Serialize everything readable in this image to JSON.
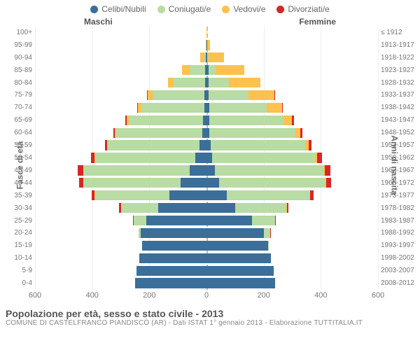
{
  "legend": [
    {
      "label": "Celibi/Nubili",
      "color": "#3b6e99"
    },
    {
      "label": "Coniugati/e",
      "color": "#b8dca3"
    },
    {
      "label": "Vedovi/e",
      "color": "#fdc24d"
    },
    {
      "label": "Divorziati/e",
      "color": "#d62728"
    }
  ],
  "columns": {
    "left": "Maschi",
    "right": "Femmine"
  },
  "axis": {
    "left_label": "Fasce di età",
    "right_label": "Anni di nascita"
  },
  "x": {
    "max": 600,
    "ticks": [
      600,
      400,
      200,
      0,
      200,
      400,
      600
    ]
  },
  "title": "Popolazione per età, sesso e stato civile - 2013",
  "subtitle": "COMUNE DI CASTELFRANCO PIANDISCÒ (AR) - Dati ISTAT 1° gennaio 2013 - Elaborazione TUTTITALIA.IT",
  "colors": {
    "celibi": "#3b6e99",
    "coniugati": "#b8dca3",
    "vedovi": "#fdc24d",
    "divorziati": "#d62728",
    "grid": "#eeeeee",
    "center": "#bbbbbb",
    "text": "#777777",
    "bg": "#ffffff"
  },
  "typography": {
    "tick_fontsize": 10,
    "legend_fontsize": 12,
    "title_fontsize": 14
  },
  "rows": [
    {
      "age": "100+",
      "year": "≤ 1912",
      "m": {
        "c": 0,
        "co": 0,
        "v": 0,
        "d": 0
      },
      "f": {
        "c": 0,
        "co": 0,
        "v": 2,
        "d": 0
      }
    },
    {
      "age": "95-99",
      "year": "1913-1917",
      "m": {
        "c": 0,
        "co": 0,
        "v": 3,
        "d": 0
      },
      "f": {
        "c": 2,
        "co": 0,
        "v": 10,
        "d": 0
      }
    },
    {
      "age": "90-94",
      "year": "1918-1922",
      "m": {
        "c": 2,
        "co": 5,
        "v": 15,
        "d": 0
      },
      "f": {
        "c": 3,
        "co": 3,
        "v": 55,
        "d": 0
      }
    },
    {
      "age": "85-89",
      "year": "1923-1927",
      "m": {
        "c": 5,
        "co": 55,
        "v": 25,
        "d": 0
      },
      "f": {
        "c": 8,
        "co": 25,
        "v": 100,
        "d": 0
      }
    },
    {
      "age": "80-84",
      "year": "1928-1932",
      "m": {
        "c": 5,
        "co": 110,
        "v": 20,
        "d": 0
      },
      "f": {
        "c": 8,
        "co": 70,
        "v": 110,
        "d": 0
      }
    },
    {
      "age": "75-79",
      "year": "1933-1937",
      "m": {
        "c": 8,
        "co": 180,
        "v": 18,
        "d": 2
      },
      "f": {
        "c": 8,
        "co": 140,
        "v": 90,
        "d": 2
      }
    },
    {
      "age": "70-74",
      "year": "1938-1942",
      "m": {
        "c": 8,
        "co": 220,
        "v": 12,
        "d": 3
      },
      "f": {
        "c": 10,
        "co": 200,
        "v": 55,
        "d": 3
      }
    },
    {
      "age": "65-69",
      "year": "1943-1947",
      "m": {
        "c": 12,
        "co": 260,
        "v": 8,
        "d": 5
      },
      "f": {
        "c": 10,
        "co": 260,
        "v": 30,
        "d": 5
      }
    },
    {
      "age": "60-64",
      "year": "1948-1952",
      "m": {
        "c": 15,
        "co": 300,
        "v": 5,
        "d": 6
      },
      "f": {
        "c": 10,
        "co": 300,
        "v": 18,
        "d": 8
      }
    },
    {
      "age": "55-59",
      "year": "1953-1957",
      "m": {
        "c": 25,
        "co": 320,
        "v": 3,
        "d": 8
      },
      "f": {
        "c": 15,
        "co": 330,
        "v": 12,
        "d": 10
      }
    },
    {
      "age": "50-54",
      "year": "1958-1962",
      "m": {
        "c": 40,
        "co": 350,
        "v": 2,
        "d": 12
      },
      "f": {
        "c": 20,
        "co": 360,
        "v": 8,
        "d": 15
      }
    },
    {
      "age": "45-49",
      "year": "1963-1967",
      "m": {
        "c": 60,
        "co": 370,
        "v": 2,
        "d": 18
      },
      "f": {
        "c": 30,
        "co": 380,
        "v": 5,
        "d": 18
      }
    },
    {
      "age": "40-44",
      "year": "1968-1972",
      "m": {
        "c": 90,
        "co": 340,
        "v": 1,
        "d": 15
      },
      "f": {
        "c": 45,
        "co": 370,
        "v": 4,
        "d": 16
      }
    },
    {
      "age": "35-39",
      "year": "1973-1977",
      "m": {
        "c": 130,
        "co": 260,
        "v": 1,
        "d": 10
      },
      "f": {
        "c": 70,
        "co": 290,
        "v": 3,
        "d": 12
      }
    },
    {
      "age": "30-34",
      "year": "1978-1982",
      "m": {
        "c": 170,
        "co": 130,
        "v": 0,
        "d": 5
      },
      "f": {
        "c": 100,
        "co": 180,
        "v": 1,
        "d": 6
      }
    },
    {
      "age": "25-29",
      "year": "1983-1987",
      "m": {
        "c": 210,
        "co": 45,
        "v": 0,
        "d": 2
      },
      "f": {
        "c": 160,
        "co": 80,
        "v": 0,
        "d": 3
      }
    },
    {
      "age": "20-24",
      "year": "1988-1992",
      "m": {
        "c": 230,
        "co": 8,
        "v": 0,
        "d": 0
      },
      "f": {
        "c": 200,
        "co": 22,
        "v": 0,
        "d": 1
      }
    },
    {
      "age": "15-19",
      "year": "1993-1997",
      "m": {
        "c": 225,
        "co": 0,
        "v": 0,
        "d": 0
      },
      "f": {
        "c": 215,
        "co": 2,
        "v": 0,
        "d": 0
      }
    },
    {
      "age": "10-14",
      "year": "1998-2002",
      "m": {
        "c": 235,
        "co": 0,
        "v": 0,
        "d": 0
      },
      "f": {
        "c": 225,
        "co": 0,
        "v": 0,
        "d": 0
      }
    },
    {
      "age": "5-9",
      "year": "2003-2007",
      "m": {
        "c": 245,
        "co": 0,
        "v": 0,
        "d": 0
      },
      "f": {
        "c": 235,
        "co": 0,
        "v": 0,
        "d": 0
      }
    },
    {
      "age": "0-4",
      "year": "2008-2012",
      "m": {
        "c": 250,
        "co": 0,
        "v": 0,
        "d": 0
      },
      "f": {
        "c": 240,
        "co": 0,
        "v": 0,
        "d": 0
      }
    }
  ]
}
